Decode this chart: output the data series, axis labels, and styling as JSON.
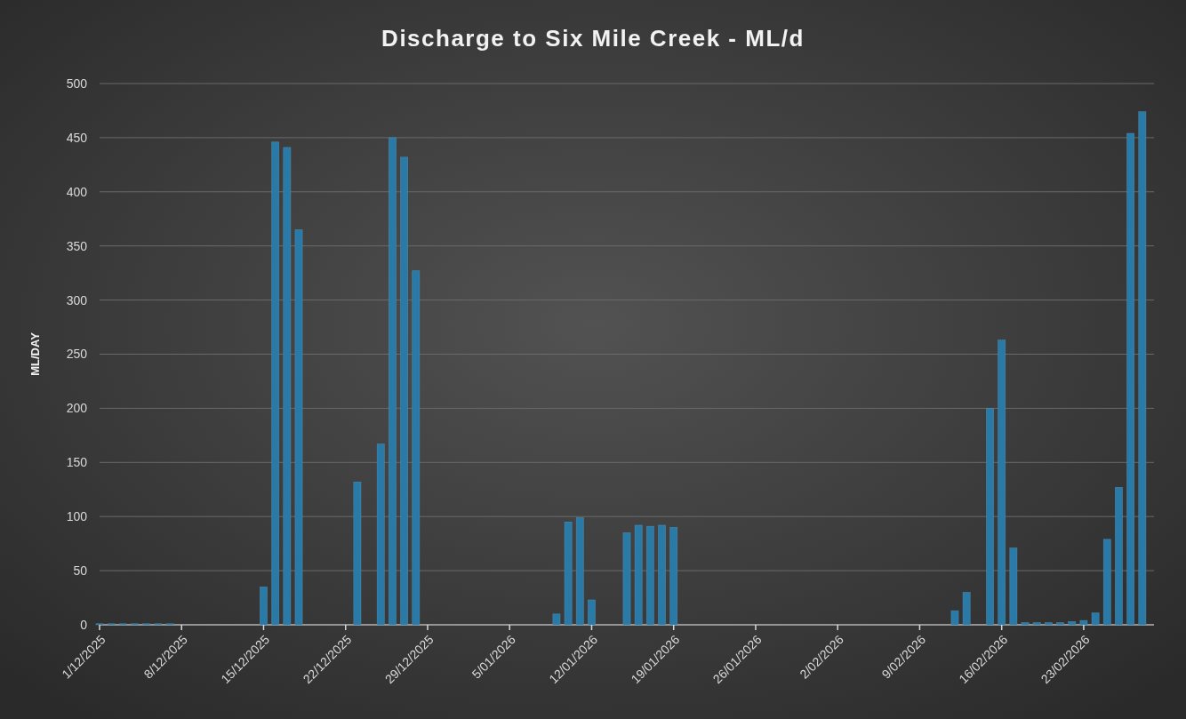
{
  "chart_data": {
    "type": "bar",
    "title": "Discharge to Six Mile Creek - ML/d",
    "ylabel": "ML/DAY",
    "x": [
      "2025-12-01",
      "2025-12-02",
      "2025-12-03",
      "2025-12-04",
      "2025-12-05",
      "2025-12-06",
      "2025-12-07",
      "2025-12-15",
      "2025-12-16",
      "2025-12-17",
      "2025-12-18",
      "2025-12-23",
      "2025-12-25",
      "2025-12-26",
      "2025-12-27",
      "2025-12-28",
      "2026-01-09",
      "2026-01-10",
      "2026-01-11",
      "2026-01-12",
      "2026-01-15",
      "2026-01-16",
      "2026-01-17",
      "2026-01-18",
      "2026-01-19",
      "2026-02-12",
      "2026-02-13",
      "2026-02-15",
      "2026-02-16",
      "2026-02-17",
      "2026-02-18",
      "2026-02-19",
      "2026-02-20",
      "2026-02-21",
      "2026-02-22",
      "2026-02-23",
      "2026-02-24",
      "2026-02-25",
      "2026-02-26",
      "2026-02-27",
      "2026-02-28"
    ],
    "values": [
      1,
      1,
      1,
      1,
      1,
      1,
      1,
      35,
      446,
      441,
      365,
      132,
      167,
      450,
      432,
      327,
      10,
      95,
      99,
      23,
      85,
      92,
      91,
      92,
      90,
      13,
      30,
      200,
      263,
      71,
      2,
      2,
      2,
      2,
      3,
      4,
      11,
      79,
      127,
      454,
      474
    ],
    "color": "#2a7aa8",
    "xlim": [
      "2025-12-01",
      "2026-03-01"
    ],
    "xticks": [
      {
        "value": "2025-12-01",
        "label": "1/12/2025"
      },
      {
        "value": "2025-12-08",
        "label": "8/12/2025"
      },
      {
        "value": "2025-12-15",
        "label": "15/12/2025"
      },
      {
        "value": "2025-12-22",
        "label": "22/12/2025"
      },
      {
        "value": "2025-12-29",
        "label": "29/12/2025"
      },
      {
        "value": "2026-01-05",
        "label": "5/01/2026"
      },
      {
        "value": "2026-01-12",
        "label": "12/01/2026"
      },
      {
        "value": "2026-01-19",
        "label": "19/01/2026"
      },
      {
        "value": "2026-01-26",
        "label": "26/01/2026"
      },
      {
        "value": "2026-02-02",
        "label": "2/02/2026"
      },
      {
        "value": "2026-02-09",
        "label": "9/02/2026"
      },
      {
        "value": "2026-02-16",
        "label": "16/02/2026"
      },
      {
        "value": "2026-02-23",
        "label": "23/02/2026"
      }
    ],
    "ylim": [
      0,
      500
    ],
    "yticks": [
      0,
      50,
      100,
      150,
      200,
      250,
      300,
      350,
      400,
      450,
      500
    ],
    "grid": "y"
  }
}
